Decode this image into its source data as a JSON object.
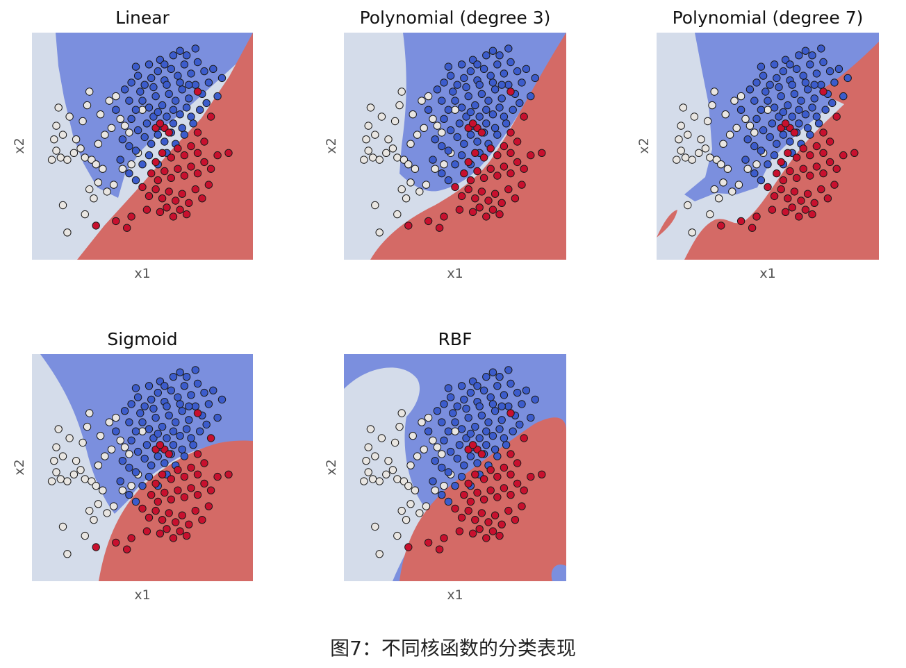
{
  "caption": "图7：不同核函数的分类表现",
  "colors": {
    "region_white": "#d4dcea",
    "region_blue": "#7b8fde",
    "region_red": "#d46a66",
    "point_white": "#e9e6e2",
    "point_blue": "#3c5ccc",
    "point_red": "#c8102e",
    "point_edge": "#1a1a1a"
  },
  "chart_data": [
    {
      "type": "scatter",
      "title": "Linear",
      "xlabel": "x1",
      "ylabel": "x2",
      "xticks": [],
      "yticks": [],
      "grid": false
    },
    {
      "type": "scatter",
      "title": "Polynomial (degree 3)",
      "xlabel": "x1",
      "ylabel": "x2",
      "xticks": [],
      "yticks": [],
      "grid": false
    },
    {
      "type": "scatter",
      "title": "Polynomial (degree 7)",
      "xlabel": "x1",
      "ylabel": "x2",
      "xticks": [],
      "yticks": [],
      "grid": false
    },
    {
      "type": "scatter",
      "title": "Sigmoid",
      "xlabel": "x1",
      "ylabel": "x2",
      "xticks": [],
      "yticks": [],
      "grid": false
    },
    {
      "type": "scatter",
      "title": "RBF",
      "xlabel": "x1",
      "ylabel": "x2",
      "xticks": [],
      "yticks": [],
      "grid": false
    }
  ],
  "points": {
    "white": [
      [
        0.12,
        0.67
      ],
      [
        0.17,
        0.63
      ],
      [
        0.23,
        0.61
      ],
      [
        0.25,
        0.68
      ],
      [
        0.26,
        0.74
      ],
      [
        0.2,
        0.53
      ],
      [
        0.14,
        0.55
      ],
      [
        0.1,
        0.53
      ],
      [
        0.11,
        0.48
      ],
      [
        0.13,
        0.45
      ],
      [
        0.16,
        0.44
      ],
      [
        0.19,
        0.47
      ],
      [
        0.22,
        0.49
      ],
      [
        0.24,
        0.45
      ],
      [
        0.27,
        0.44
      ],
      [
        0.3,
        0.51
      ],
      [
        0.33,
        0.55
      ],
      [
        0.36,
        0.58
      ],
      [
        0.4,
        0.62
      ],
      [
        0.42,
        0.59
      ],
      [
        0.31,
        0.64
      ],
      [
        0.35,
        0.7
      ],
      [
        0.38,
        0.72
      ],
      [
        0.29,
        0.42
      ],
      [
        0.32,
        0.4
      ],
      [
        0.41,
        0.4
      ],
      [
        0.45,
        0.42
      ],
      [
        0.48,
        0.47
      ],
      [
        0.26,
        0.31
      ],
      [
        0.28,
        0.27
      ],
      [
        0.3,
        0.34
      ],
      [
        0.34,
        0.3
      ],
      [
        0.37,
        0.33
      ],
      [
        0.14,
        0.24
      ],
      [
        0.24,
        0.2
      ],
      [
        0.16,
        0.12
      ],
      [
        0.09,
        0.44
      ],
      [
        0.11,
        0.59
      ],
      [
        0.44,
        0.56
      ],
      [
        0.5,
        0.66
      ]
    ],
    "blue": [
      [
        0.42,
        0.75
      ],
      [
        0.45,
        0.78
      ],
      [
        0.48,
        0.81
      ],
      [
        0.51,
        0.77
      ],
      [
        0.54,
        0.8
      ],
      [
        0.57,
        0.83
      ],
      [
        0.6,
        0.79
      ],
      [
        0.63,
        0.84
      ],
      [
        0.66,
        0.81
      ],
      [
        0.69,
        0.86
      ],
      [
        0.72,
        0.82
      ],
      [
        0.75,
        0.87
      ],
      [
        0.78,
        0.83
      ],
      [
        0.7,
        0.9
      ],
      [
        0.74,
        0.93
      ],
      [
        0.64,
        0.9
      ],
      [
        0.58,
        0.88
      ],
      [
        0.53,
        0.86
      ],
      [
        0.47,
        0.85
      ],
      [
        0.44,
        0.7
      ],
      [
        0.47,
        0.66
      ],
      [
        0.5,
        0.7
      ],
      [
        0.53,
        0.67
      ],
      [
        0.56,
        0.72
      ],
      [
        0.59,
        0.68
      ],
      [
        0.62,
        0.73
      ],
      [
        0.65,
        0.7
      ],
      [
        0.68,
        0.75
      ],
      [
        0.71,
        0.71
      ],
      [
        0.74,
        0.77
      ],
      [
        0.77,
        0.73
      ],
      [
        0.8,
        0.78
      ],
      [
        0.82,
        0.84
      ],
      [
        0.52,
        0.6
      ],
      [
        0.55,
        0.63
      ],
      [
        0.58,
        0.59
      ],
      [
        0.61,
        0.63
      ],
      [
        0.64,
        0.6
      ],
      [
        0.67,
        0.64
      ],
      [
        0.45,
        0.62
      ],
      [
        0.48,
        0.57
      ],
      [
        0.51,
        0.54
      ],
      [
        0.54,
        0.51
      ],
      [
        0.57,
        0.55
      ],
      [
        0.6,
        0.52
      ],
      [
        0.63,
        0.56
      ],
      [
        0.41,
        0.53
      ],
      [
        0.44,
        0.5
      ],
      [
        0.38,
        0.66
      ],
      [
        0.4,
        0.44
      ],
      [
        0.47,
        0.48
      ],
      [
        0.44,
        0.38
      ],
      [
        0.47,
        0.35
      ],
      [
        0.5,
        0.42
      ],
      [
        0.53,
        0.46
      ],
      [
        0.57,
        0.42
      ],
      [
        0.61,
        0.47
      ],
      [
        0.65,
        0.51
      ],
      [
        0.69,
        0.55
      ],
      [
        0.73,
        0.6
      ],
      [
        0.76,
        0.66
      ],
      [
        0.79,
        0.69
      ],
      [
        0.84,
        0.72
      ],
      [
        0.86,
        0.8
      ],
      [
        0.55,
        0.76
      ],
      [
        0.61,
        0.77
      ],
      [
        0.67,
        0.78
      ],
      [
        0.49,
        0.74
      ],
      [
        0.64,
        0.66
      ],
      [
        0.7,
        0.67
      ],
      [
        0.6,
        0.86
      ],
      [
        0.67,
        0.92
      ],
      [
        0.71,
        0.77
      ],
      [
        0.57,
        0.65
      ],
      [
        0.68,
        0.58
      ],
      [
        0.72,
        0.63
      ]
    ],
    "red": [
      [
        0.59,
        0.47
      ],
      [
        0.63,
        0.45
      ],
      [
        0.66,
        0.49
      ],
      [
        0.69,
        0.46
      ],
      [
        0.72,
        0.5
      ],
      [
        0.75,
        0.47
      ],
      [
        0.78,
        0.52
      ],
      [
        0.56,
        0.43
      ],
      [
        0.54,
        0.38
      ],
      [
        0.57,
        0.35
      ],
      [
        0.6,
        0.39
      ],
      [
        0.63,
        0.36
      ],
      [
        0.66,
        0.4
      ],
      [
        0.69,
        0.37
      ],
      [
        0.72,
        0.41
      ],
      [
        0.75,
        0.38
      ],
      [
        0.78,
        0.43
      ],
      [
        0.81,
        0.4
      ],
      [
        0.84,
        0.46
      ],
      [
        0.5,
        0.32
      ],
      [
        0.53,
        0.28
      ],
      [
        0.56,
        0.31
      ],
      [
        0.59,
        0.27
      ],
      [
        0.62,
        0.3
      ],
      [
        0.65,
        0.26
      ],
      [
        0.68,
        0.29
      ],
      [
        0.71,
        0.25
      ],
      [
        0.74,
        0.31
      ],
      [
        0.77,
        0.27
      ],
      [
        0.8,
        0.33
      ],
      [
        0.58,
        0.21
      ],
      [
        0.61,
        0.23
      ],
      [
        0.64,
        0.19
      ],
      [
        0.67,
        0.22
      ],
      [
        0.7,
        0.2
      ],
      [
        0.45,
        0.19
      ],
      [
        0.52,
        0.22
      ],
      [
        0.38,
        0.17
      ],
      [
        0.43,
        0.14
      ],
      [
        0.29,
        0.15
      ],
      [
        0.56,
        0.58
      ],
      [
        0.6,
        0.58
      ],
      [
        0.62,
        0.56
      ],
      [
        0.75,
        0.56
      ],
      [
        0.89,
        0.47
      ],
      [
        0.75,
        0.74
      ],
      [
        0.81,
        0.63
      ],
      [
        0.58,
        0.6
      ]
    ]
  }
}
